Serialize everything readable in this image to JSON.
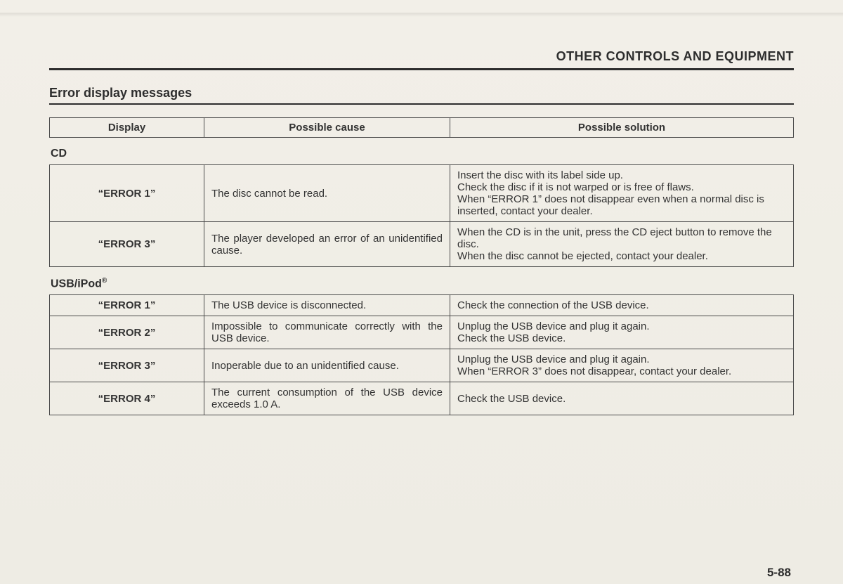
{
  "header": "OTHER CONTROLS AND EQUIPMENT",
  "section_title": "Error display messages",
  "columns": {
    "display": "Display",
    "cause": "Possible cause",
    "solution": "Possible solution"
  },
  "groups": [
    {
      "label": "CD",
      "rows": [
        {
          "display": "“ERROR 1”",
          "cause": "The disc cannot be read.",
          "cause_justify": false,
          "solution": "Insert the disc with its label side up.\nCheck the disc if it is not warped or is free of flaws.\nWhen “ERROR 1” does not disappear even when a normal disc is inserted, contact your dealer.",
          "solution_justify": false
        },
        {
          "display": "“ERROR 3”",
          "cause": "The player developed an error of an unidentified cause.",
          "cause_justify": true,
          "solution": "When the CD is in the unit, press the CD eject button to remove the disc.\nWhen the disc cannot be ejected, contact your dealer.",
          "solution_justify": false
        }
      ]
    },
    {
      "label": "USB/iPod",
      "label_sup": "®",
      "rows": [
        {
          "display": "“ERROR 1”",
          "cause": "The USB device is disconnected.",
          "cause_justify": false,
          "solution": "Check the connection of the USB device.",
          "solution_justify": false
        },
        {
          "display": "“ERROR 2”",
          "cause": "Impossible to communicate correctly with the USB device.",
          "cause_justify": true,
          "solution": "Unplug the USB device and plug it again.\nCheck the USB device.",
          "solution_justify": false
        },
        {
          "display": "“ERROR 3”",
          "cause": "Inoperable due to an unidentified cause.",
          "cause_justify": false,
          "solution": "Unplug the USB device and plug it again.\nWhen “ERROR 3” does not disappear, contact your dealer.",
          "solution_justify": true
        },
        {
          "display": "“ERROR 4”",
          "cause": "The current consumption of the USB device exceeds 1.0 A.",
          "cause_justify": true,
          "solution": "Check the USB device.",
          "solution_justify": false
        }
      ]
    }
  ],
  "page_number": "5-88"
}
